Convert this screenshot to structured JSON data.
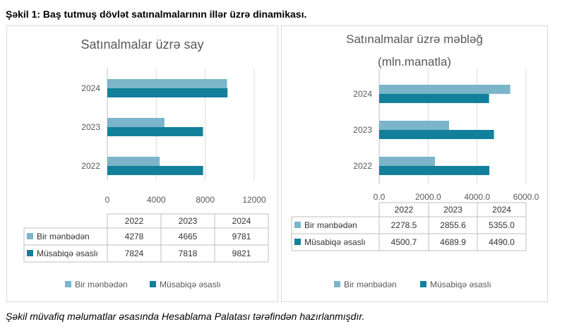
{
  "figure_title": "Şəkil 1: Baş tutmuş dövlət satınalmalarının illər üzrə dinamikası.",
  "caption": "Şəkil müvafiq məlumatlar əsasında Hesablama Palatası tərəfindən hazırlanmışdır.",
  "colors": {
    "bir_menbeden": "#7bb5c9",
    "musabiqe": "#12809b"
  },
  "chart_data": [
    {
      "type": "bar",
      "orientation": "horizontal",
      "title": "Satınalmalar üzrə say",
      "title_line2": "",
      "categories": [
        "2022",
        "2023",
        "2024"
      ],
      "series": [
        {
          "name": "Bir mənbədən",
          "values": [
            4278,
            4665,
            9781
          ],
          "labels": [
            "4278",
            "4665",
            "9781"
          ]
        },
        {
          "name": "Müsabiqə əsaslı",
          "values": [
            7824,
            7818,
            9821
          ],
          "labels": [
            "7824",
            "7818",
            "9821"
          ]
        }
      ],
      "xlim": [
        0,
        12000
      ],
      "xticks": [
        0,
        4000,
        8000,
        12000
      ],
      "xtick_labels": [
        "0",
        "4000",
        "8000",
        "12000"
      ],
      "grid": true,
      "data_table": true,
      "legend_position": "bottom"
    },
    {
      "type": "bar",
      "orientation": "horizontal",
      "title": "Satınalmalar üzrə məbləğ",
      "title_line2": "(mln.manatla)",
      "categories": [
        "2022",
        "2023",
        "2024"
      ],
      "series": [
        {
          "name": "Bir mənbədən",
          "values": [
            2278.5,
            2855.6,
            5355.0
          ],
          "labels": [
            "2278.5",
            "2855.6",
            "5355.0"
          ]
        },
        {
          "name": "Müsabiqə əsaslı",
          "values": [
            4500.7,
            4689.9,
            4490.0
          ],
          "labels": [
            "4500.7",
            "4689.9",
            "4490.0"
          ]
        }
      ],
      "xlim": [
        0,
        6000
      ],
      "xticks": [
        0,
        2000,
        4000,
        6000
      ],
      "xtick_labels": [
        "0.0",
        "2000.0",
        "4000.0",
        "6000.0"
      ],
      "grid": true,
      "data_table": true,
      "legend_position": "bottom"
    }
  ]
}
